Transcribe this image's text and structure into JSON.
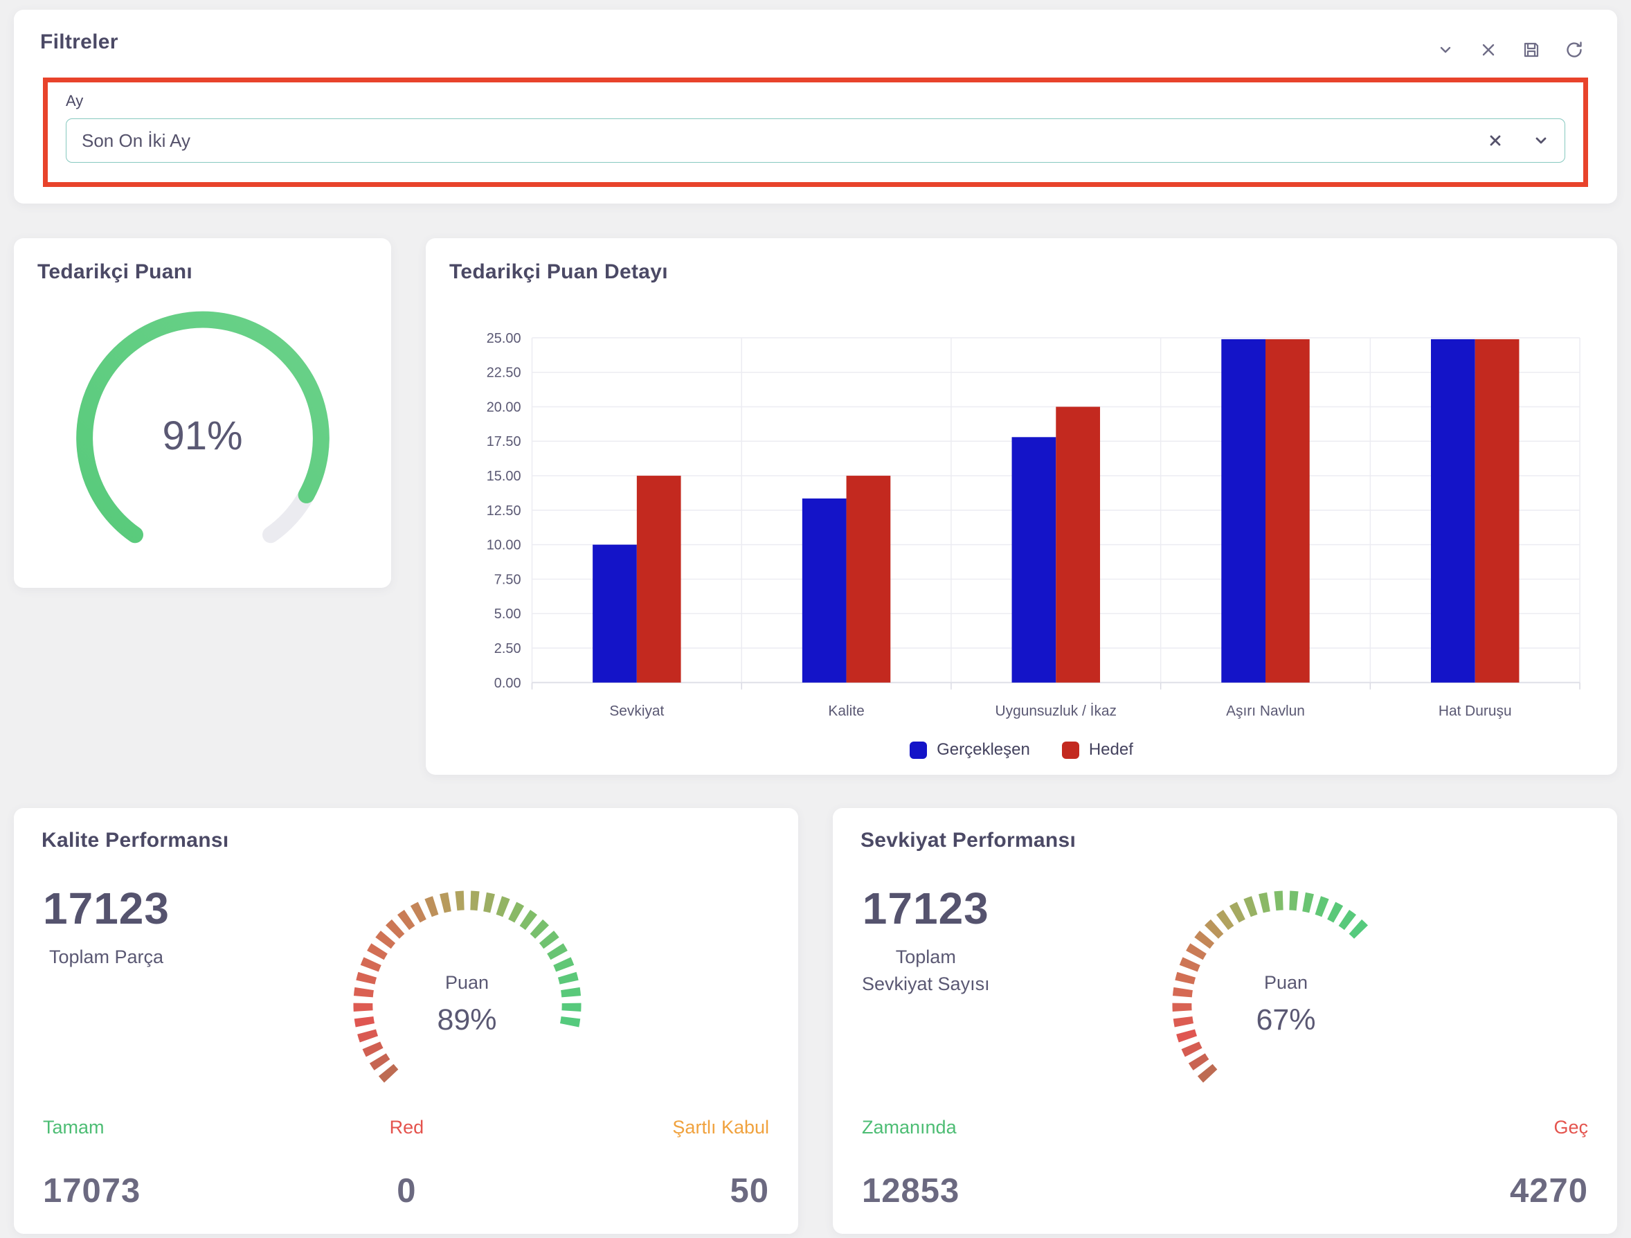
{
  "filter_panel": {
    "title": "Filtreler",
    "field": {
      "label": "Ay",
      "value": "Son On İki Ay"
    },
    "highlight_color": "#e8432b",
    "input_border_color": "#86c8bf"
  },
  "supplier_score_card": {
    "title": "Tedarikçi Puanı"
  },
  "score_detail_card": {
    "title": "Tedarikçi Puan Detayı"
  },
  "quality_card": {
    "title": "Kalite Performansı",
    "total_value": "17123",
    "total_label": "Toplam Parça",
    "gauge_label": "Puan",
    "gauge_display": "89%",
    "stats": [
      {
        "label": "Tamam",
        "value": "17073",
        "color": "#4dbd74"
      },
      {
        "label": "Red",
        "value": "0",
        "color": "#e4534d"
      },
      {
        "label": "Şartlı Kabul",
        "value": "50",
        "color": "#f0a23e"
      }
    ]
  },
  "shipment_card": {
    "title": "Sevkiyat Performansı",
    "total_value": "17123",
    "total_label_line1": "Toplam",
    "total_label_line2": "Sevkiyat Sayısı",
    "gauge_label": "Puan",
    "gauge_display": "67%",
    "stats": [
      {
        "label": "Zamanında",
        "value": "12853",
        "color": "#4dbd74"
      },
      {
        "label": "Geç",
        "value": "4270",
        "color": "#e4534d"
      }
    ]
  },
  "chart_data": [
    {
      "id": "supplier-score-gauge",
      "type": "gauge",
      "style": "ring",
      "title": "Tedarikçi Puanı",
      "value": 91,
      "max": 100,
      "display": "91%",
      "start_angle": 235,
      "sweep": 290,
      "color": "#58ca7b",
      "color_end": "#6ad189",
      "track_color": "#ebebf0"
    },
    {
      "id": "score-detail-bars",
      "type": "bar",
      "title": "Tedarikçi Puan Detayı",
      "categories": [
        "Sevkiyat",
        "Kalite",
        "Uygunsuzluk / İkaz",
        "Aşırı Navlun",
        "Hat Duruşu"
      ],
      "series": [
        {
          "name": "Gerçekleşen",
          "color": "#1414c8",
          "values": [
            10,
            13.35,
            17.8,
            24.9,
            24.9
          ]
        },
        {
          "name": "Hedef",
          "color": "#c3291f",
          "values": [
            15,
            15,
            20,
            24.9,
            24.9
          ]
        }
      ],
      "ylim": [
        0,
        25
      ],
      "ytick_step": 2.5,
      "grid": true,
      "legend_position": "bottom"
    },
    {
      "id": "quality-gauge",
      "type": "gauge",
      "style": "segmented",
      "title": "Kalite Performansı Puan",
      "value": 89,
      "max": 100,
      "display": "89%",
      "start_angle": 225,
      "sweep": 270,
      "segments": 34,
      "color_stops": [
        [
          0,
          "#bd6b52"
        ],
        [
          0.13,
          "#e05551"
        ],
        [
          0.42,
          "#c97d56"
        ],
        [
          0.54,
          "#b3a15e"
        ],
        [
          0.7,
          "#86bb67"
        ],
        [
          0.88,
          "#5cc878"
        ],
        [
          1,
          "#55ca7d"
        ]
      ]
    },
    {
      "id": "shipment-gauge",
      "type": "gauge",
      "style": "segmented",
      "title": "Sevkiyat Performansı Puan",
      "value": 67,
      "max": 100,
      "display": "67%",
      "start_angle": 225,
      "sweep": 270,
      "segments": 34,
      "color_stops": [
        [
          0,
          "#bd6b52"
        ],
        [
          0.13,
          "#e05551"
        ],
        [
          0.42,
          "#c97d56"
        ],
        [
          0.54,
          "#b3a15e"
        ],
        [
          0.7,
          "#86bb67"
        ],
        [
          0.88,
          "#5cc878"
        ],
        [
          1,
          "#55ca7d"
        ]
      ]
    }
  ]
}
